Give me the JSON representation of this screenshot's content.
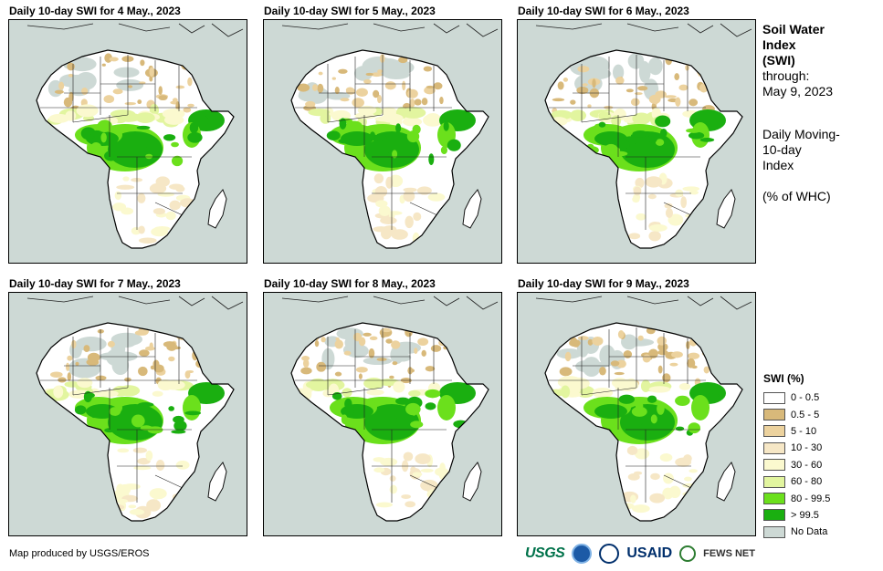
{
  "panels": [
    {
      "title": "Daily 10-day SWI for 4 May., 2023",
      "variant": 0
    },
    {
      "title": "Daily 10-day SWI for 5 May., 2023",
      "variant": 1
    },
    {
      "title": "Daily 10-day SWI for 6 May., 2023",
      "variant": 2
    },
    {
      "title": "Daily 10-day SWI for 7 May., 2023",
      "variant": 3
    },
    {
      "title": "Daily 10-day SWI for 8 May., 2023",
      "variant": 4
    },
    {
      "title": "Daily 10-day SWI for 9 May., 2023",
      "variant": 5
    }
  ],
  "info": {
    "title_line1": "Soil Water",
    "title_line2": "Index",
    "title_line3": "(SWI)",
    "through_label": "through:",
    "through_date": "May 9, 2023",
    "desc_line1": "Daily Moving-",
    "desc_line2": "10-day",
    "desc_line3": "Index",
    "units": "(% of WHC)"
  },
  "legend": {
    "title": "SWI (%)",
    "items": [
      {
        "label": "0 - 0.5",
        "color": "#ffffff"
      },
      {
        "label": "0.5 - 5",
        "color": "#d8b97a"
      },
      {
        "label": "5 - 10",
        "color": "#ecd29e"
      },
      {
        "label": "10 - 30",
        "color": "#f6e7c6"
      },
      {
        "label": "30 - 60",
        "color": "#fbf9cf"
      },
      {
        "label": "60 - 80",
        "color": "#e2f59f"
      },
      {
        "label": "80 - 99.5",
        "color": "#6be01c"
      },
      {
        "label": "> 99.5",
        "color": "#1aaf10"
      },
      {
        "label": "No Data",
        "color": "#cdd9d5"
      }
    ]
  },
  "credit": "Map produced by USGS/EROS",
  "logos": {
    "usgs": "USGS",
    "usaid": "USAID",
    "fews": "FEWS NET"
  }
}
